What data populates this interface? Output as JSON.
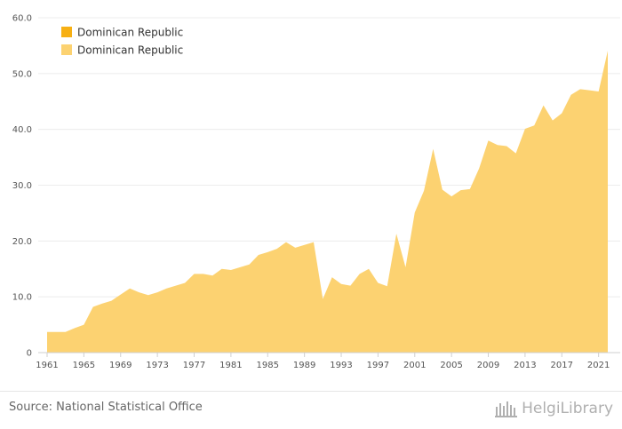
{
  "chart_data": {
    "type": "area",
    "title": "",
    "xlabel": "",
    "ylabel": "",
    "x": [
      1961,
      1962,
      1963,
      1964,
      1965,
      1966,
      1967,
      1968,
      1969,
      1970,
      1971,
      1972,
      1973,
      1974,
      1975,
      1976,
      1977,
      1978,
      1979,
      1980,
      1981,
      1982,
      1983,
      1984,
      1985,
      1986,
      1987,
      1988,
      1989,
      1990,
      1991,
      1992,
      1993,
      1994,
      1995,
      1996,
      1997,
      1998,
      1999,
      2000,
      2001,
      2002,
      2003,
      2004,
      2005,
      2006,
      2007,
      2008,
      2009,
      2010,
      2011,
      2012,
      2013,
      2014,
      2015,
      2016,
      2017,
      2018,
      2019,
      2020,
      2021,
      2022
    ],
    "series": [
      {
        "name": "Dominican Republic",
        "color": "#fcd271",
        "values": [
          3.7,
          3.7,
          3.7,
          4.4,
          5.0,
          8.2,
          8.8,
          9.3,
          10.4,
          11.5,
          10.8,
          10.3,
          10.8,
          11.5,
          12.0,
          12.5,
          14.1,
          14.1,
          13.8,
          15.0,
          14.8,
          15.3,
          15.8,
          17.5,
          18.0,
          18.6,
          19.8,
          18.8,
          19.3,
          19.8,
          9.6,
          13.5,
          12.3,
          12.0,
          14.1,
          15.0,
          12.5,
          11.9,
          21.3,
          15.3,
          25.1,
          29.0,
          36.5,
          29.2,
          28.0,
          29.1,
          29.3,
          33.0,
          38.0,
          37.2,
          37.0,
          35.7,
          40.1,
          40.7,
          44.3,
          41.6,
          42.9,
          46.2,
          47.2,
          47.0,
          46.8,
          54.1
        ]
      }
    ],
    "legend": {
      "placement": "top-left",
      "entries": [
        {
          "label": "Dominican Republic",
          "color": "#f7b014"
        },
        {
          "label": "Dominican Republic",
          "color": "#fcd271"
        }
      ]
    },
    "ylim": [
      0,
      60
    ],
    "yticks": [
      "0",
      "10.0",
      "20.0",
      "30.0",
      "40.0",
      "50.0",
      "60.0"
    ],
    "xticks": [
      "1961",
      "1965",
      "1969",
      "1973",
      "1977",
      "1981",
      "1985",
      "1989",
      "1993",
      "1997",
      "2001",
      "2005",
      "2009",
      "2013",
      "2017",
      "2021"
    ],
    "grid": true
  },
  "footer": {
    "source": "Source: National Statistical Office",
    "brand": "HelgiLibrary"
  }
}
